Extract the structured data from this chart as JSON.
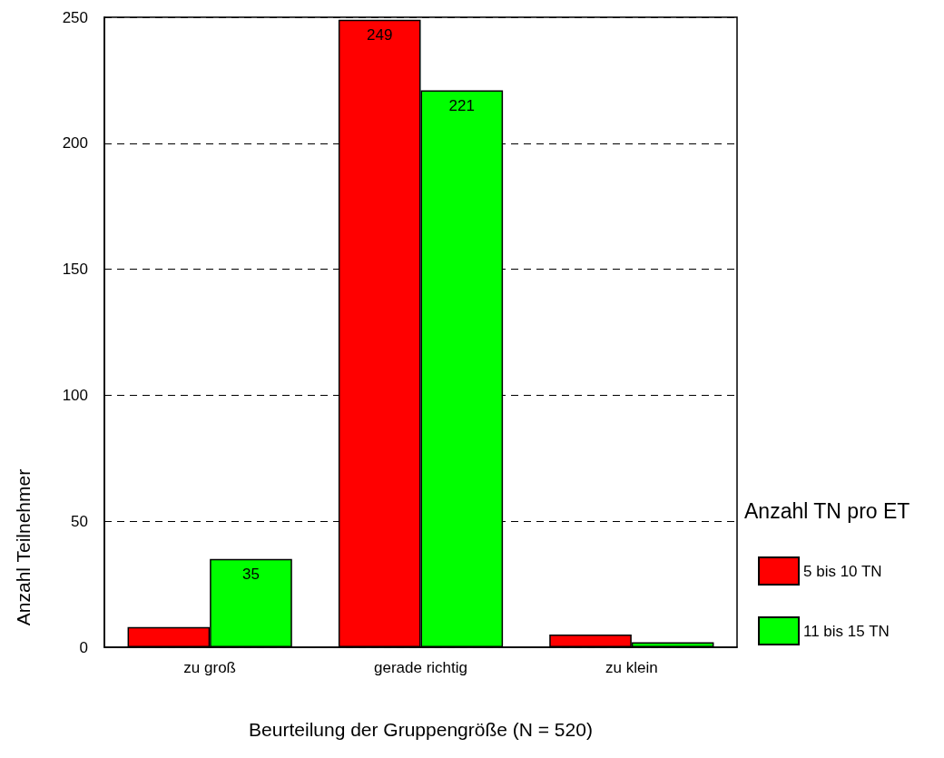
{
  "chart_data": {
    "type": "bar",
    "xlabel": "Beurteilung der Gruppengröße (N = 520)",
    "ylabel": "Anzahl Teilnehmer",
    "legend_title": "Anzahl TN pro ET",
    "categories": [
      "zu groß",
      "gerade richtig",
      "zu klein"
    ],
    "series": [
      {
        "name": "5 bis 10 TN",
        "color": "#ff0000",
        "values": [
          8,
          249,
          5
        ],
        "value_labels": [
          null,
          "249",
          null
        ]
      },
      {
        "name": "11 bis 15 TN",
        "color": "#00ff00",
        "values": [
          35,
          221,
          2
        ],
        "value_labels": [
          "35",
          "221",
          null
        ]
      }
    ],
    "ylim": [
      0,
      250
    ],
    "yticks": [
      0,
      50,
      100,
      150,
      200,
      250
    ],
    "grid": "y",
    "legend": "right"
  }
}
